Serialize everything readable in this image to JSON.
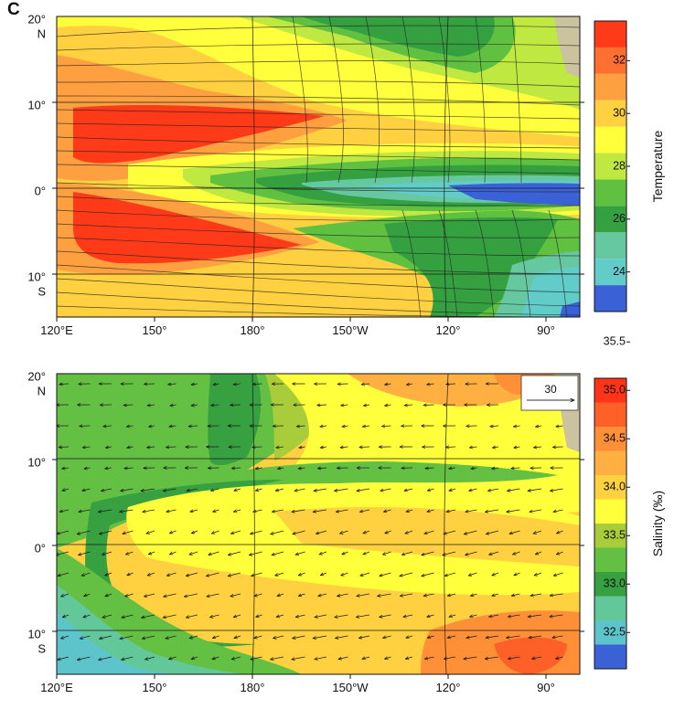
{
  "panel_label": "C",
  "colors": {
    "temp": [
      "#3a62d6",
      "#62ccc8",
      "#66c8a0",
      "#35a040",
      "#60c040",
      "#bfe840",
      "#ffff3c",
      "#ffd040",
      "#ffa040",
      "#ff7030",
      "#ff3a18"
    ],
    "sal": [
      "#3a62d6",
      "#5ec4cc",
      "#62c89a",
      "#37a040",
      "#63c043",
      "#a8cc3a",
      "#ffff3c",
      "#ffd040",
      "#ffb040",
      "#ff9038",
      "#ff6028",
      "#ff3418"
    ],
    "land": "#cbc3a0"
  },
  "top_panel": {
    "x_ticks": [
      "120°E",
      "150°",
      "180°",
      "150°W",
      "120°",
      "90°"
    ],
    "y_ticks": [
      "20°",
      "N",
      "10°",
      "0°",
      "10°",
      "S"
    ],
    "colorbar": {
      "label": "Temperature",
      "ticks": [
        "24",
        "26",
        "28",
        "30",
        "32"
      ]
    }
  },
  "bottom_panel": {
    "x_ticks": [
      "120°E",
      "150°",
      "180°",
      "150°W",
      "120°",
      "90°"
    ],
    "y_ticks": [
      "20°",
      "N",
      "10°",
      "0°",
      "10°",
      "S"
    ],
    "colorbar": {
      "label": "Salinity (‰)",
      "ticks": [
        "32.5",
        "33.0",
        "33.5",
        "34.0",
        "34.5",
        "35.0",
        "35.5"
      ]
    },
    "reference_vector": "30"
  },
  "chart_data": [
    {
      "type": "heatmap",
      "field": "temperature",
      "x_range_lon_east": [
        120,
        280
      ],
      "y_range_lat": [
        -15,
        20
      ],
      "color_levels": [
        23,
        24,
        25,
        26,
        27,
        28,
        29,
        30,
        31,
        32,
        33,
        34
      ],
      "overlay": "streamlines"
    },
    {
      "type": "heatmap",
      "field": "salinity",
      "x_range_lon_east": [
        120,
        280
      ],
      "y_range_lat": [
        -15,
        20
      ],
      "color_levels": [
        32.25,
        32.5,
        32.75,
        33.0,
        33.25,
        33.5,
        33.75,
        34.0,
        34.25,
        34.5,
        34.75,
        35.0,
        35.25
      ],
      "overlay": "vectors"
    }
  ]
}
